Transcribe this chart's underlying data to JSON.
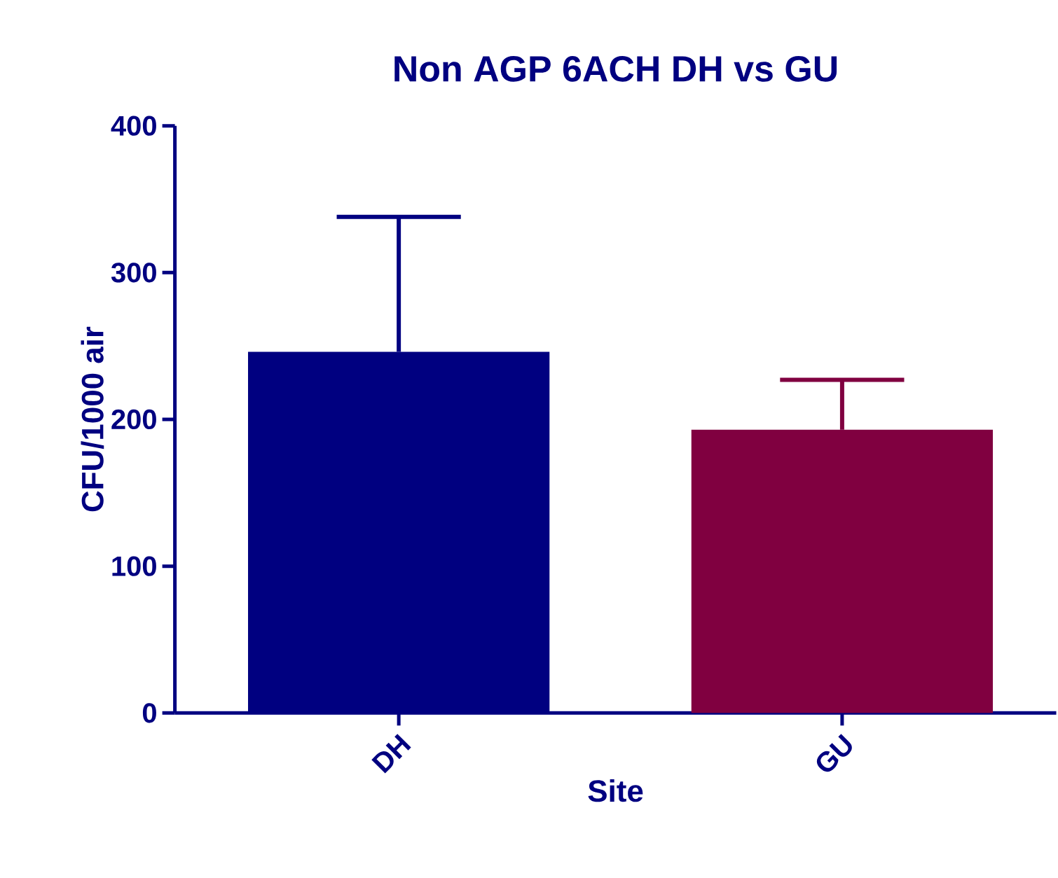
{
  "chart_data": {
    "type": "bar",
    "title": "Non AGP 6ACH DH vs GU",
    "xlabel": "Site",
    "ylabel": "CFU/1000 air",
    "categories": [
      "DH",
      "GU"
    ],
    "values": [
      246,
      193
    ],
    "colors": [
      "#000080",
      "#800040"
    ],
    "errors": [
      [
        246,
        338
      ],
      [
        193,
        227
      ]
    ],
    "ylim": [
      0,
      400
    ],
    "yticks": [
      0,
      100,
      200,
      300,
      400
    ],
    "grid": false
  }
}
